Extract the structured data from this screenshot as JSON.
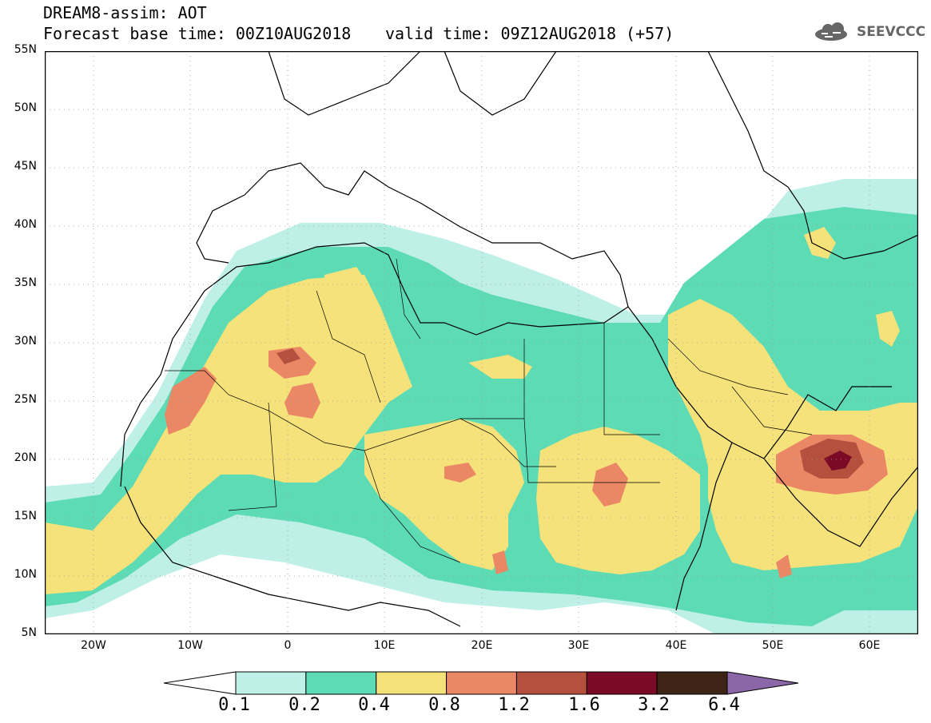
{
  "header": {
    "title": "DREAM8-assim: AOT",
    "base_time": "Forecast base time: 00Z10AUG2018",
    "valid_time": "valid time: 09Z12AUG2018 (+57)",
    "logo_text": "SEEVCCC"
  },
  "map": {
    "lat_range": [
      5,
      55
    ],
    "lon_range": [
      -25,
      65
    ],
    "lat_labels": [
      "55N",
      "50N",
      "45N",
      "40N",
      "35N",
      "30N",
      "25N",
      "20N",
      "15N",
      "10N",
      "5N"
    ],
    "lon_labels": [
      "20W",
      "10W",
      "0",
      "10E",
      "20E",
      "30E",
      "40E",
      "50E",
      "60E"
    ],
    "gridlines": true,
    "variable": "Aerosol optical thickness"
  },
  "colorbar": {
    "levels": [
      "0.1",
      "0.2",
      "0.4",
      "0.8",
      "1.2",
      "1.6",
      "3.2",
      "6.4"
    ],
    "colors": [
      "#ffffff",
      "#bff0e8",
      "#5cdbb4",
      "#f6e27a",
      "#ea8866",
      "#b5503e",
      "#7a0a26",
      "#3d2415",
      "#8c67a8"
    ]
  }
}
